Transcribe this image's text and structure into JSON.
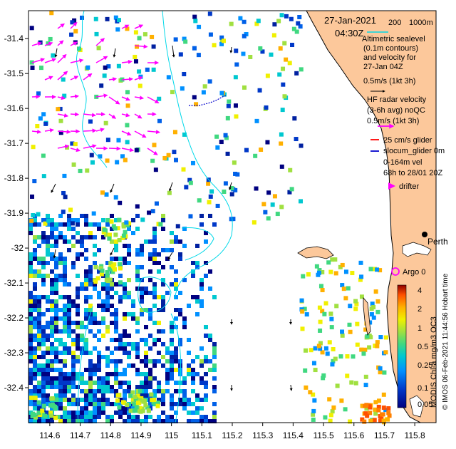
{
  "map": {
    "date": "27-Jan-2021",
    "time": "04:30Z",
    "lon_ticks": [
      "114.6",
      "114.7",
      "114.8",
      "114.9",
      "115",
      "115.1",
      "115.2",
      "115.3",
      "115.4",
      "115.5",
      "115.6",
      "115.7",
      "115.8"
    ],
    "lat_ticks": [
      "-31.4",
      "-31.5",
      "-31.6",
      "-31.7",
      "-31.8",
      "-31.9",
      "-32",
      "-32.1",
      "-32.2",
      "-32.3",
      "-32.4"
    ],
    "lon_range": [
      114.53,
      115.87
    ],
    "lat_range": [
      -32.5,
      -31.32
    ]
  },
  "legend": {
    "contour_labels": [
      "200",
      "1000m"
    ],
    "altimetric_lines": [
      "Altimetric sealevel",
      "(0.1m contours)",
      "and velocity for",
      "27-Jan 04Z",
      "0.5m/s (1kt 3h)"
    ],
    "hf_lines": [
      "HF radar velocity",
      "(3-6h avg) noQC",
      "0.5m/s (1kt 3h)"
    ],
    "glider_lines": [
      "25 cm/s glider",
      "slocum_glider 0m",
      "0-164m vel",
      "68h to 28/01 20Z"
    ],
    "drifter": "drifter",
    "city": "Perth",
    "argo": "Argo 0"
  },
  "colorbar": {
    "tick_labels": [
      "4",
      "2",
      "1",
      "0.5",
      "0.25",
      "0.1",
      "0.05"
    ],
    "title": "MODIS Chl-a mg/m3 OC3",
    "credit": "© IMOS 06-Feb-2021 11:44:56 Hobart time"
  },
  "colors": {
    "land": "#FCC89B",
    "hf_arrow": "#FF00FF",
    "contour": "#00D8E8",
    "coast": "#000000"
  }
}
